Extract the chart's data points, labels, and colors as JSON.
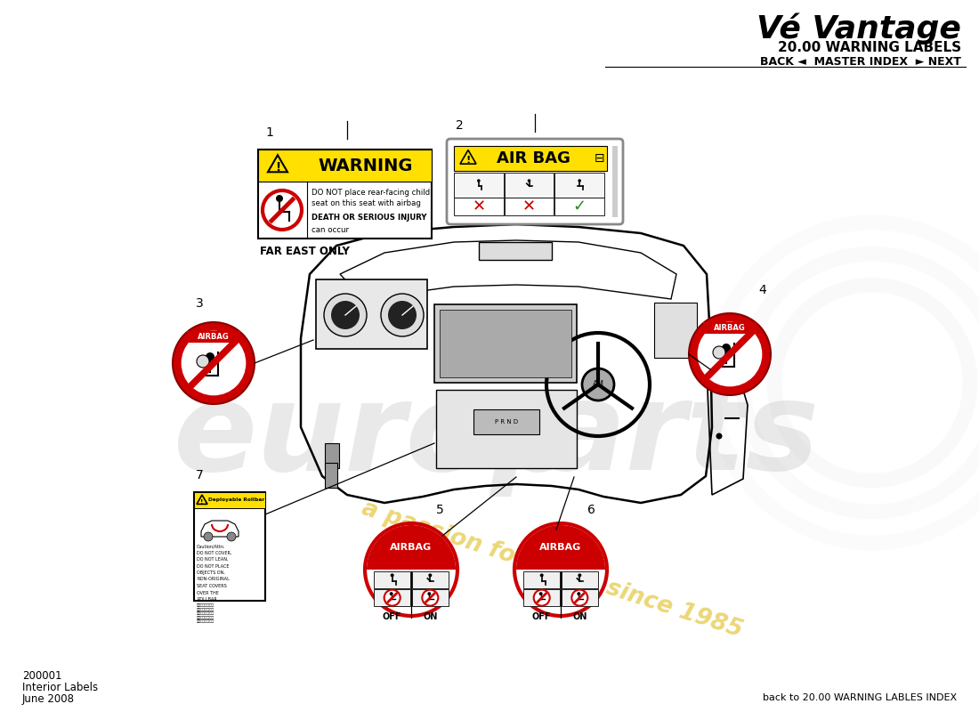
{
  "bg_color": "#ffffff",
  "title_italic": "Vé Vantage",
  "subtitle": "20.00 WARNING LABELS",
  "nav": "BACK ◄  MASTER INDEX  ► NEXT",
  "bottom_left_1": "200001",
  "bottom_left_2": "Interior Labels",
  "bottom_left_3": "June 2008",
  "bottom_right": "back to 20.00 WARNING LABLES INDEX",
  "far_east_only": "FAR EAST ONLY",
  "warn1_text1": "DO NOT place rear-facing child",
  "warn1_text2": "seat on this seat with airbag",
  "warn1_text3": "DEATH OR SERIOUS INJURY",
  "warn1_text4": "can occur",
  "label_nums": [
    "1",
    "2",
    "3",
    "4",
    "5",
    "6",
    "7"
  ],
  "red_color": "#cc0000",
  "yellow_color": "#FFE000",
  "airbag_text": "AIRBAG",
  "off_text": "OFF",
  "on_text": "ON",
  "air_bag_header": "AIR BAG",
  "warning_text": "WARNING",
  "watermark_gray": "#d8d8d8",
  "watermark_yellow": "#e8d060"
}
